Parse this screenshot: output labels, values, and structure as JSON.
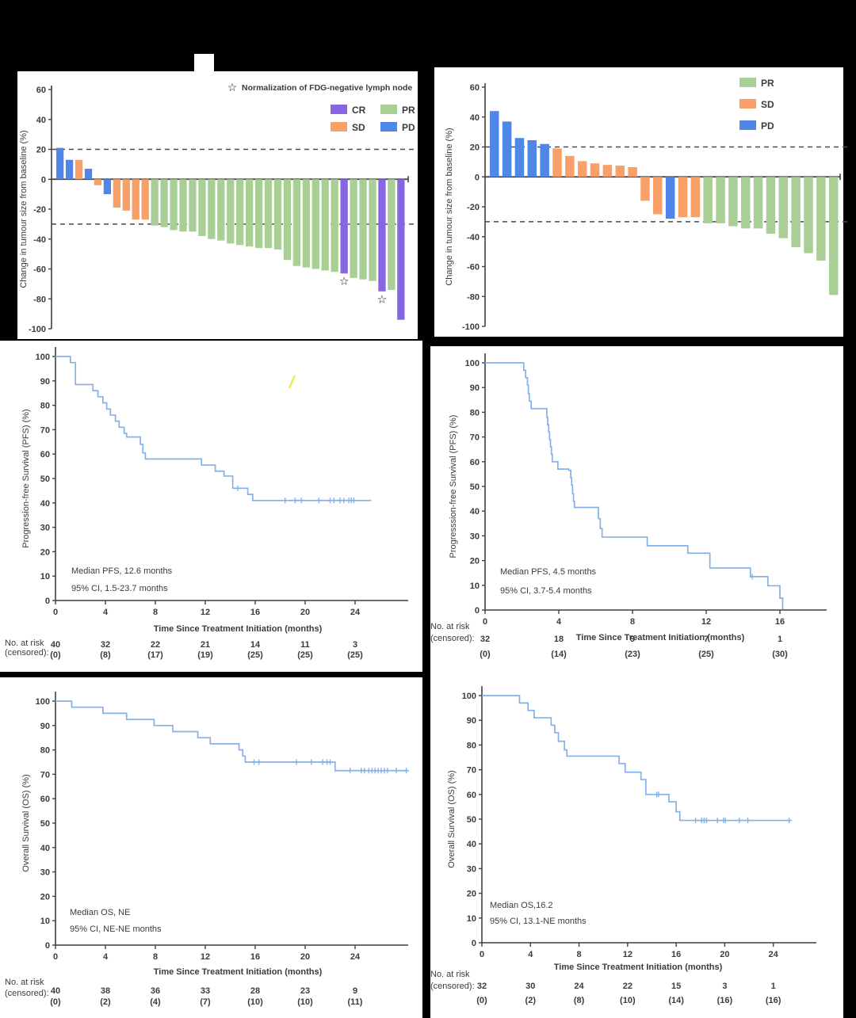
{
  "page": {
    "description": "Six-panel oncology figure: two waterfall plots of best change in tumour size and four Kaplan-Meier survival curves (PFS and OS) for two cohorts"
  },
  "colors": {
    "background": "#000000",
    "panel": "#ffffff",
    "axis": "#3f3f3f",
    "text": "#3b3b3b",
    "km_line": "#85b1e6",
    "dashed": "#4a4a4a",
    "cr": "#8766e2",
    "pr": "#a9cf96",
    "sd": "#f9a069",
    "pd": "#4f86e8",
    "stray": "#f2e84e"
  },
  "chart_data": [
    {
      "id": "waterfall_a",
      "type": "bar",
      "title": "",
      "ylabel": "Change in tumour size from baseline (%)",
      "ylim": [
        -100,
        60
      ],
      "yticks": [
        60,
        40,
        20,
        0,
        -20,
        -40,
        -60,
        -80,
        -100
      ],
      "ref_lines": [
        20,
        -30
      ],
      "grid": false,
      "legend_position": "top-right",
      "legend": {
        "note": "Normalization of FDG-negative lymph node",
        "items": [
          {
            "label": "CR",
            "color_key": "cr"
          },
          {
            "label": "PR",
            "color_key": "pr"
          },
          {
            "label": "SD",
            "color_key": "sd"
          },
          {
            "label": "PD",
            "color_key": "pd"
          }
        ]
      },
      "bars": [
        {
          "value": 21,
          "group": "PD"
        },
        {
          "value": 13,
          "group": "PD"
        },
        {
          "value": 13,
          "group": "SD"
        },
        {
          "value": 7,
          "group": "PD"
        },
        {
          "value": -4,
          "group": "SD"
        },
        {
          "value": -10,
          "group": "PD"
        },
        {
          "value": -19,
          "group": "SD"
        },
        {
          "value": -21,
          "group": "SD"
        },
        {
          "value": -27,
          "group": "SD"
        },
        {
          "value": -27,
          "group": "SD"
        },
        {
          "value": -31,
          "group": "PR"
        },
        {
          "value": -32,
          "group": "PR"
        },
        {
          "value": -34,
          "group": "PR"
        },
        {
          "value": -35,
          "group": "PR"
        },
        {
          "value": -35,
          "group": "PR"
        },
        {
          "value": -38,
          "group": "PR"
        },
        {
          "value": -40,
          "group": "PR"
        },
        {
          "value": -41,
          "group": "PR"
        },
        {
          "value": -43,
          "group": "PR"
        },
        {
          "value": -44,
          "group": "PR"
        },
        {
          "value": -45,
          "group": "PR"
        },
        {
          "value": -46,
          "group": "PR"
        },
        {
          "value": -46,
          "group": "PR"
        },
        {
          "value": -47,
          "group": "PR"
        },
        {
          "value": -54,
          "group": "PR"
        },
        {
          "value": -58,
          "group": "PR"
        },
        {
          "value": -59,
          "group": "PR"
        },
        {
          "value": -60,
          "group": "PR"
        },
        {
          "value": -61,
          "group": "PR"
        },
        {
          "value": -62,
          "group": "PR"
        },
        {
          "value": -63,
          "group": "CR"
        },
        {
          "value": -66,
          "group": "PR"
        },
        {
          "value": -67,
          "group": "PR"
        },
        {
          "value": -68,
          "group": "PR"
        },
        {
          "value": -75,
          "group": "CR"
        },
        {
          "value": -74,
          "group": "PR"
        },
        {
          "value": -94,
          "group": "CR"
        }
      ],
      "stars": [
        {
          "index": 30,
          "y": -68
        },
        {
          "index": 34,
          "y": -80
        }
      ]
    },
    {
      "id": "waterfall_b",
      "type": "bar",
      "title": "",
      "ylabel": "Change in tumour size from baseline (%)",
      "ylim": [
        -100,
        60
      ],
      "yticks": [
        60,
        40,
        20,
        0,
        -20,
        -40,
        -60,
        -80,
        -100
      ],
      "ref_lines": [
        20,
        -30
      ],
      "grid": false,
      "legend_position": "top-right",
      "legend": {
        "note": null,
        "items": [
          {
            "label": "PR",
            "color_key": "pr"
          },
          {
            "label": "SD",
            "color_key": "sd"
          },
          {
            "label": "PD",
            "color_key": "pd"
          }
        ]
      },
      "bars": [
        {
          "value": 44,
          "group": "PD"
        },
        {
          "value": 37,
          "group": "PD"
        },
        {
          "value": 26,
          "group": "PD"
        },
        {
          "value": 24.5,
          "group": "PD"
        },
        {
          "value": 22,
          "group": "PD"
        },
        {
          "value": 19,
          "group": "SD"
        },
        {
          "value": 14,
          "group": "SD"
        },
        {
          "value": 10.5,
          "group": "SD"
        },
        {
          "value": 9,
          "group": "SD"
        },
        {
          "value": 8,
          "group": "SD"
        },
        {
          "value": 7.5,
          "group": "SD"
        },
        {
          "value": 6.5,
          "group": "SD"
        },
        {
          "value": -16,
          "group": "SD"
        },
        {
          "value": -25,
          "group": "SD"
        },
        {
          "value": -28,
          "group": "PD"
        },
        {
          "value": -27,
          "group": "SD"
        },
        {
          "value": -27,
          "group": "SD"
        },
        {
          "value": -31,
          "group": "PR"
        },
        {
          "value": -31,
          "group": "PR"
        },
        {
          "value": -33,
          "group": "PR"
        },
        {
          "value": -34.5,
          "group": "PR"
        },
        {
          "value": -34.5,
          "group": "PR"
        },
        {
          "value": -38,
          "group": "PR"
        },
        {
          "value": -41,
          "group": "PR"
        },
        {
          "value": -47,
          "group": "PR"
        },
        {
          "value": -51,
          "group": "PR"
        },
        {
          "value": -56,
          "group": "PR"
        },
        {
          "value": -79,
          "group": "PR"
        }
      ],
      "stars": []
    },
    {
      "id": "pfs_a",
      "type": "line",
      "title": "",
      "ylabel": "Progression-free Survival (PFS) (%)",
      "xlabel": "Time Since Treatment Initiation (months)",
      "ylim": [
        0,
        100
      ],
      "yticks": [
        0,
        10,
        20,
        30,
        40,
        50,
        60,
        70,
        80,
        90,
        100
      ],
      "xticks": [
        0,
        4,
        8,
        12,
        16,
        20,
        24
      ],
      "xmax": 28.3,
      "end_time": 25.3,
      "annotations": [
        "Median PFS, 12.6 months",
        "95% CI, 1.5-23.7 months"
      ],
      "steps": [
        [
          0,
          100
        ],
        [
          1.2,
          97.5
        ],
        [
          1.6,
          88.5
        ],
        [
          3.0,
          86
        ],
        [
          3.4,
          83.5
        ],
        [
          3.8,
          81
        ],
        [
          4.1,
          78.5
        ],
        [
          4.4,
          76
        ],
        [
          4.8,
          73.5
        ],
        [
          5.1,
          71
        ],
        [
          5.5,
          68.5
        ],
        [
          5.7,
          67
        ],
        [
          6.8,
          64
        ],
        [
          7.0,
          60.5
        ],
        [
          7.2,
          58
        ],
        [
          11.7,
          55.5
        ],
        [
          12.8,
          53
        ],
        [
          13.5,
          51
        ],
        [
          14.2,
          46
        ],
        [
          15.4,
          43.5
        ],
        [
          15.8,
          41
        ]
      ],
      "censors": [
        [
          14.6,
          46
        ],
        [
          18.4,
          41
        ],
        [
          19.2,
          41
        ],
        [
          19.7,
          41
        ],
        [
          21.1,
          41
        ],
        [
          22.0,
          41
        ],
        [
          22.3,
          41
        ],
        [
          22.8,
          41
        ],
        [
          23.1,
          41
        ],
        [
          23.5,
          41
        ],
        [
          23.7,
          41
        ],
        [
          23.9,
          41
        ]
      ],
      "at_risk_label": "No. at risk",
      "censored_label": "(censored):",
      "at_risk": [
        40,
        32,
        22,
        21,
        14,
        11,
        3
      ],
      "censored": [
        "(0)",
        "(8)",
        "(17)",
        "(19)",
        "(25)",
        "(25)",
        "(25)"
      ],
      "has_stray_mark": true
    },
    {
      "id": "pfs_b",
      "type": "line",
      "title": "",
      "ylabel": "Progresssion-free Survival (PFS) (%)",
      "xlabel": "Time Since Treatment Initiation (months)",
      "ylim": [
        0,
        100
      ],
      "yticks": [
        0,
        10,
        20,
        30,
        40,
        50,
        60,
        70,
        80,
        90,
        100
      ],
      "xticks": [
        0,
        4,
        8,
        12,
        16
      ],
      "xmax": 18.5,
      "end_time": 16.2,
      "annotations": [
        "Median PFS, 4.5 months",
        "95% CI, 3.7-5.4 months"
      ],
      "steps": [
        [
          0,
          100
        ],
        [
          2.1,
          97
        ],
        [
          2.2,
          94
        ],
        [
          2.3,
          91
        ],
        [
          2.35,
          87.5
        ],
        [
          2.4,
          84.5
        ],
        [
          2.5,
          81.5
        ],
        [
          3.35,
          78
        ],
        [
          3.4,
          75
        ],
        [
          3.45,
          72
        ],
        [
          3.5,
          69
        ],
        [
          3.55,
          66
        ],
        [
          3.6,
          63
        ],
        [
          3.65,
          60
        ],
        [
          3.95,
          57
        ],
        [
          4.55,
          56.5
        ],
        [
          4.65,
          53.5
        ],
        [
          4.7,
          50.5
        ],
        [
          4.75,
          47
        ],
        [
          4.8,
          44
        ],
        [
          4.85,
          41.5
        ],
        [
          6.15,
          37
        ],
        [
          6.25,
          33
        ],
        [
          6.35,
          29.5
        ],
        [
          8.8,
          26
        ],
        [
          11.0,
          23
        ],
        [
          12.2,
          17
        ],
        [
          14.4,
          13.5
        ],
        [
          15.35,
          9.8
        ],
        [
          16.0,
          4.8
        ],
        [
          16.15,
          0.5
        ]
      ],
      "censors": [
        [
          14.5,
          13.5
        ]
      ],
      "at_risk_label": "No. at risk",
      "censored_label": "(censored):",
      "at_risk": [
        32,
        18,
        9,
        7,
        1
      ],
      "censored": [
        "(0)",
        "(14)",
        "(23)",
        "(25)",
        "(30)"
      ],
      "has_stray_mark": false
    },
    {
      "id": "os_a",
      "type": "line",
      "title": "",
      "ylabel": "Overall Survival (OS) (%)",
      "xlabel": "Time Since Treatment Initiation (months)",
      "ylim": [
        0,
        100
      ],
      "yticks": [
        0,
        10,
        20,
        30,
        40,
        50,
        60,
        70,
        80,
        90,
        100
      ],
      "xticks": [
        0,
        4,
        8,
        12,
        16,
        20,
        24
      ],
      "xmax": 28.3,
      "end_time": 28.2,
      "annotations": [
        "Median OS, NE",
        "95% CI, NE-NE months"
      ],
      "steps": [
        [
          0,
          100
        ],
        [
          1.3,
          97.5
        ],
        [
          3.8,
          95
        ],
        [
          5.7,
          92.5
        ],
        [
          7.9,
          90
        ],
        [
          9.4,
          87.5
        ],
        [
          11.4,
          85
        ],
        [
          12.4,
          82.5
        ],
        [
          14.7,
          80
        ],
        [
          15.0,
          77.5
        ],
        [
          15.2,
          75
        ],
        [
          22.4,
          71.5
        ]
      ],
      "censors": [
        [
          15.9,
          75
        ],
        [
          16.3,
          75
        ],
        [
          19.3,
          75
        ],
        [
          20.5,
          75
        ],
        [
          21.4,
          75
        ],
        [
          21.75,
          75
        ],
        [
          22.0,
          75
        ],
        [
          23.6,
          71.5
        ],
        [
          24.5,
          71.5
        ],
        [
          24.75,
          71.5
        ],
        [
          25.1,
          71.5
        ],
        [
          25.35,
          71.5
        ],
        [
          25.6,
          71.5
        ],
        [
          25.85,
          71.5
        ],
        [
          26.1,
          71.5
        ],
        [
          26.35,
          71.5
        ],
        [
          26.6,
          71.5
        ],
        [
          27.3,
          71.5
        ],
        [
          28.1,
          71.5
        ]
      ],
      "at_risk_label": "No. at risk",
      "censored_label": "(censored):",
      "at_risk": [
        40,
        38,
        36,
        33,
        28,
        23,
        9
      ],
      "censored": [
        "(0)",
        "(2)",
        "(4)",
        "(7)",
        "(10)",
        "(10)",
        "(11)"
      ],
      "has_stray_mark": false
    },
    {
      "id": "os_b",
      "type": "line",
      "title": "",
      "ylabel": "Overall Survival (OS) (%)",
      "xlabel": "Time Since Treatment Initiation (months)",
      "ylim": [
        0,
        100
      ],
      "yticks": [
        0,
        10,
        20,
        30,
        40,
        50,
        60,
        70,
        80,
        90,
        100
      ],
      "xticks": [
        0,
        4,
        8,
        12,
        16,
        20,
        24
      ],
      "xmax": 27.5,
      "end_time": 25.4,
      "annotations": [
        "Median OS,16.2",
        "95% CI, 13.1-NE months"
      ],
      "steps": [
        [
          0,
          100
        ],
        [
          3.1,
          97
        ],
        [
          3.8,
          94
        ],
        [
          4.3,
          91
        ],
        [
          5.7,
          88
        ],
        [
          6.0,
          85
        ],
        [
          6.3,
          81.5
        ],
        [
          6.8,
          78
        ],
        [
          7.0,
          75.5
        ],
        [
          11.3,
          72.5
        ],
        [
          11.8,
          69
        ],
        [
          13.1,
          66
        ],
        [
          13.5,
          60
        ],
        [
          15.4,
          57
        ],
        [
          16.0,
          53
        ],
        [
          16.3,
          49.5
        ]
      ],
      "censors": [
        [
          14.4,
          60
        ],
        [
          14.55,
          60
        ],
        [
          17.6,
          49.5
        ],
        [
          18.1,
          49.5
        ],
        [
          18.3,
          49.5
        ],
        [
          18.5,
          49.5
        ],
        [
          19.4,
          49.5
        ],
        [
          19.9,
          49.5
        ],
        [
          20.05,
          49.5
        ],
        [
          21.2,
          49.5
        ],
        [
          21.9,
          49.5
        ],
        [
          25.3,
          49.5
        ]
      ],
      "at_risk_label": "No. at risk",
      "censored_label": "(censored):",
      "at_risk": [
        32,
        30,
        24,
        22,
        15,
        3,
        1
      ],
      "censored": [
        "(0)",
        "(2)",
        "(8)",
        "(10)",
        "(14)",
        "(16)",
        "(16)"
      ],
      "has_stray_mark": false
    }
  ]
}
